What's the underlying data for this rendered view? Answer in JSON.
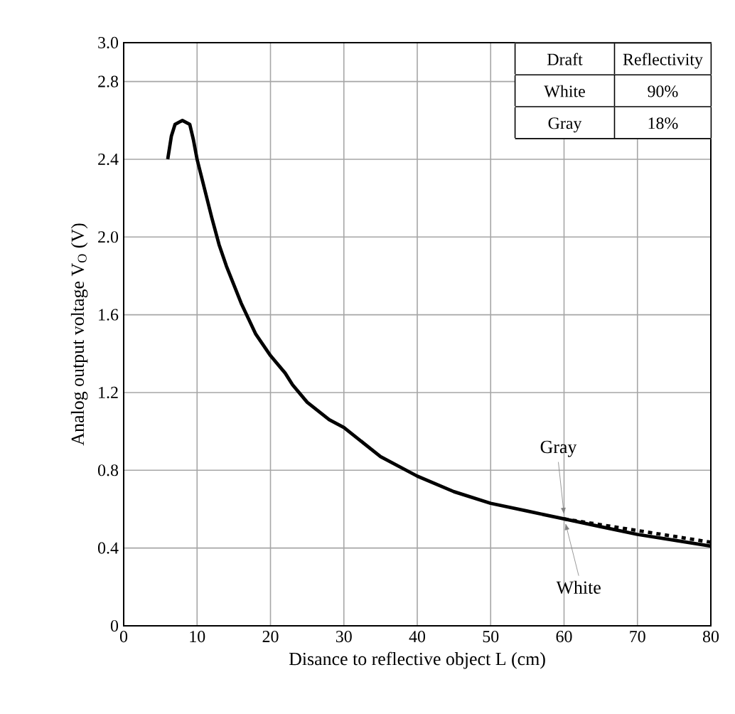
{
  "chart_data": {
    "type": "line",
    "xlabel": "Disance to reflective object L (cm)",
    "ylabel": "Analog output voltage V$_{O}$ (V)",
    "xlim": [
      0,
      80
    ],
    "xticks": [
      0,
      10,
      20,
      30,
      40,
      50,
      60,
      70,
      80
    ],
    "ylim": [
      0,
      3.0
    ],
    "yticks": [
      {
        "value": 0,
        "label": "0"
      },
      {
        "value": 0.4,
        "label": "0.4"
      },
      {
        "value": 0.8,
        "label": "0.8"
      },
      {
        "value": 1.2,
        "label": "1.2"
      },
      {
        "value": 1.6,
        "label": "1.6"
      },
      {
        "value": 2.0,
        "label": "2.0"
      },
      {
        "value": 2.4,
        "label": "2.4"
      },
      {
        "value": 2.8,
        "label": "2.8"
      },
      {
        "value": 3.0,
        "label": "3.0"
      }
    ],
    "grid": true,
    "series": [
      {
        "name": "White",
        "color": "#000000",
        "line_style": "solid",
        "x": [
          6,
          6.5,
          7,
          8,
          9,
          9.5,
          10,
          11,
          12,
          13,
          14,
          16,
          18,
          20,
          22,
          23,
          25,
          28,
          30,
          35,
          40,
          45,
          50,
          55,
          60,
          65,
          70,
          75,
          80
        ],
        "values": [
          2.4,
          2.52,
          2.58,
          2.6,
          2.58,
          2.5,
          2.4,
          2.25,
          2.1,
          1.96,
          1.85,
          1.66,
          1.5,
          1.39,
          1.3,
          1.24,
          1.15,
          1.06,
          1.02,
          0.87,
          0.77,
          0.69,
          0.63,
          0.59,
          0.55,
          0.51,
          0.47,
          0.44,
          0.41
        ]
      },
      {
        "name": "Gray",
        "color": "#000000",
        "line_style": "dashed",
        "x": [
          60,
          65,
          70,
          75,
          80
        ],
        "values": [
          0.55,
          0.52,
          0.49,
          0.46,
          0.43
        ]
      }
    ],
    "annotations": [
      "Draft",
      "Reflectivity",
      "White",
      "90%",
      "Gray",
      "18%"
    ]
  }
}
